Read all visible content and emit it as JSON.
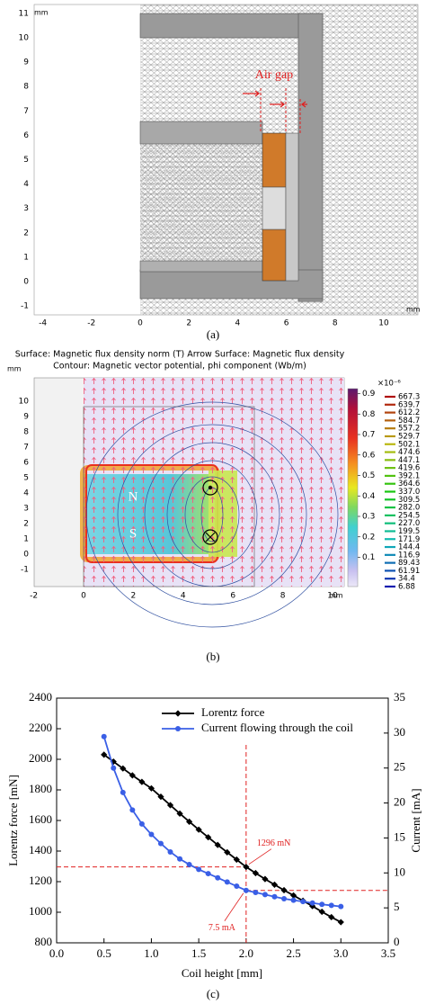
{
  "panel_a": {
    "xticks": [
      "-4",
      "-2",
      "0",
      "2",
      "4",
      "6",
      "8",
      "10"
    ],
    "yticks": [
      "11",
      "10",
      "9",
      "8",
      "7",
      "6",
      "5",
      "4",
      "3",
      "2",
      "1",
      "0",
      "-1"
    ],
    "x_unit": "mm",
    "y_unit": "mm",
    "annotation": "Air gap",
    "caption": "(a)"
  },
  "panel_b": {
    "header": [
      "Surface: Magnetic flux density norm (T)  Arrow Surface: Magnetic flux density",
      "Contour: Magnetic vector potential, phi component (Wb/m)"
    ],
    "xticks": [
      "-2",
      "0",
      "2",
      "4",
      "6",
      "8",
      "10"
    ],
    "yticks": [
      "10",
      "9",
      "8",
      "7",
      "6",
      "5",
      "4",
      "3",
      "2",
      "1",
      "0",
      "-1"
    ],
    "x_unit": "mm",
    "y_unit": "mm",
    "colorbar_ticks": [
      "0.9",
      "0.8",
      "0.7",
      "0.6",
      "0.5",
      "0.4",
      "0.3",
      "0.2",
      "0.1"
    ],
    "contour_scale": "×10⁻⁶",
    "contour_levels": [
      "667.3",
      "639.7",
      "612.2",
      "584.7",
      "557.2",
      "529.7",
      "502.1",
      "474.6",
      "447.1",
      "419.6",
      "392.1",
      "364.6",
      "337.0",
      "309.5",
      "282.0",
      "254.5",
      "227.0",
      "199.5",
      "171.9",
      "144.4",
      "116.9",
      "89.43",
      "61.91",
      "34.4",
      "6.88"
    ],
    "pole_labels": [
      "N",
      "S"
    ],
    "caption": "(b)"
  },
  "chart_data": {
    "type": "line",
    "xlabel": "Coil height [mm]",
    "ylabel": "Lorentz force [mN]",
    "y2label": "Current [mA]",
    "caption": "(c)",
    "x": [
      0.5,
      0.6,
      0.7,
      0.8,
      0.9,
      1.0,
      1.1,
      1.2,
      1.3,
      1.4,
      1.5,
      1.6,
      1.7,
      1.8,
      1.9,
      2.0,
      2.1,
      2.2,
      2.3,
      2.4,
      2.5,
      2.6,
      2.7,
      2.8,
      2.9,
      3.0
    ],
    "series": [
      {
        "name": "Lorentz force",
        "color": "#000000",
        "marker": "diamond",
        "values": [
          2030,
          1985,
          1940,
          1895,
          1852,
          1810,
          1755,
          1700,
          1645,
          1592,
          1540,
          1490,
          1440,
          1392,
          1344,
          1296,
          1256,
          1217,
          1180,
          1144,
          1110,
          1075,
          1040,
          1003,
          968,
          935
        ]
      },
      {
        "name": "Current flowing through the coil",
        "color": "#3a5fe6",
        "marker": "circle",
        "axis": "y2",
        "values": [
          29.5,
          25,
          21.5,
          19,
          17,
          15.5,
          14.2,
          13,
          12,
          11.2,
          10.5,
          9.9,
          9.3,
          8.7,
          8.1,
          7.5,
          7.2,
          6.9,
          6.6,
          6.3,
          6.1,
          5.9,
          5.7,
          5.5,
          5.35,
          5.2
        ]
      }
    ],
    "xlim": [
      0,
      3.5
    ],
    "xticks": [
      {
        "value": 0,
        "label": "0.0"
      },
      0.5,
      {
        "value": 1,
        "label": "1.0"
      },
      1.5,
      {
        "value": 2,
        "label": "2.0"
      },
      2.5,
      {
        "value": 3,
        "label": "3.0"
      },
      3.5
    ],
    "ylim": [
      800,
      2400
    ],
    "yticks": [
      800,
      1000,
      1200,
      1400,
      1600,
      1800,
      2000,
      2200,
      2400
    ],
    "y2lim": [
      0,
      35
    ],
    "y2ticks": [
      0,
      5,
      10,
      15,
      20,
      25,
      30,
      35
    ],
    "reference_lines": {
      "x": 2,
      "y": 1296,
      "y2": 7.5,
      "color": "#e02020"
    },
    "annotations": [
      "1296 mN",
      "7.5 mA"
    ],
    "legend": "upper right"
  }
}
